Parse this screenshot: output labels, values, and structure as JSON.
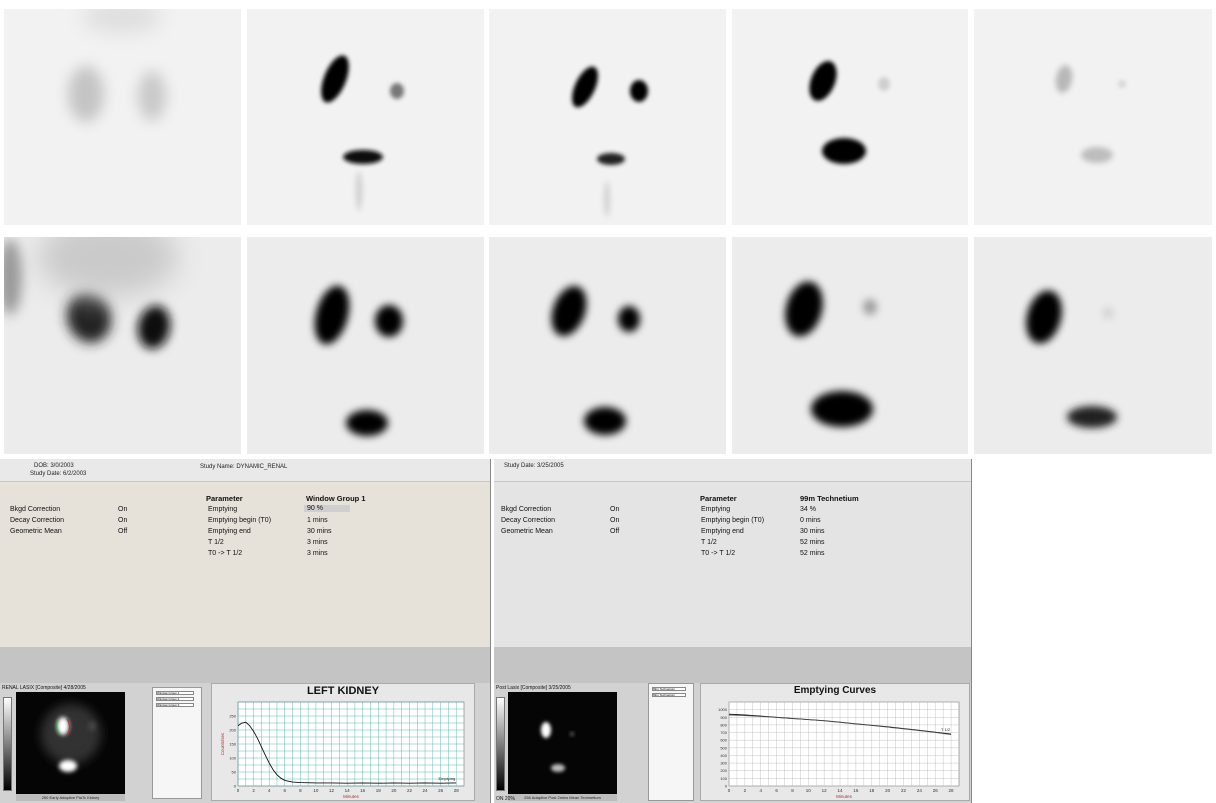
{
  "left_report": {
    "header": {
      "dob": "DOB: 3/0/2003",
      "study_date": "Study Date: 6/2/2003",
      "study_name": "Study Name: DYNAMIC_RENAL"
    },
    "corrections": [
      {
        "label": "Bkgd Correction",
        "value": "On"
      },
      {
        "label": "Decay Correction",
        "value": "On"
      },
      {
        "label": "Geometric Mean",
        "value": "Off"
      }
    ],
    "param_header": "Parameter",
    "group_header": "Window Group 1",
    "params": [
      {
        "label": "Emptying",
        "value": "90 %"
      },
      {
        "label": "Emptying begin (T0)",
        "value": "1 mins"
      },
      {
        "label": "Emptying end",
        "value": "30 mins"
      },
      {
        "label": "T 1/2",
        "value": "3 mins"
      },
      {
        "label": "T0 -> T 1/2",
        "value": "3 mins"
      }
    ],
    "thumb_title": "RENAL LASIX [Composite] 4/28/2005",
    "thumb_caption": "250 Early Adaptive PlaTc Kidney",
    "legend": [
      "Window Group 1",
      "Window Group 2",
      "Window Group 3"
    ],
    "chart": {
      "title": "LEFT KIDNEY",
      "xlabel": "Minutes",
      "ylabel": "Counts/sec",
      "xticks": [
        "0",
        "2",
        "4",
        "6",
        "8",
        "10",
        "12",
        "14",
        "16",
        "18",
        "20",
        "22",
        "24",
        "26",
        "28"
      ],
      "yticks": [
        "0",
        "50",
        "100",
        "150",
        "200",
        "250"
      ],
      "series_label": "Emptying"
    }
  },
  "right_report": {
    "header": {
      "study_date": "Study Date: 3/25/2005"
    },
    "corrections": [
      {
        "label": "Bkgd Correction",
        "value": "On"
      },
      {
        "label": "Decay Correction",
        "value": "On"
      },
      {
        "label": "Geometric Mean",
        "value": "Off"
      }
    ],
    "param_header": "Parameter",
    "group_header": "99m Technetium",
    "params": [
      {
        "label": "Emptying",
        "value": "34 %"
      },
      {
        "label": "Emptying begin (T0)",
        "value": "0 mins"
      },
      {
        "label": "Emptying end",
        "value": "30 mins"
      },
      {
        "label": "T 1/2",
        "value": "52 mins"
      },
      {
        "label": "T0 -> T 1/2",
        "value": "52 mins"
      }
    ],
    "thumb_title": "Post Lasix [Composite] 3/25/2005",
    "thumb_caption": "256 Adaptive Post 2mins Mean Technetium",
    "thumb_footer": "ON 20%",
    "legend": [
      "99m Technetium",
      "99m Technetium"
    ],
    "chart": {
      "title": "Emptying Curves",
      "xlabel": "Minutes",
      "xticks": [
        "0",
        "2",
        "4",
        "6",
        "8",
        "10",
        "12",
        "14",
        "16",
        "18",
        "20",
        "22",
        "24",
        "26",
        "28"
      ],
      "yticks": [
        "0",
        "100",
        "200",
        "300",
        "400",
        "500",
        "600",
        "700",
        "800",
        "900",
        "1000"
      ],
      "series_label": "T 1/2"
    }
  },
  "chart_data": [
    {
      "type": "line",
      "title": "LEFT KIDNEY",
      "xlabel": "Minutes",
      "ylabel": "Counts/sec",
      "xlim": [
        0,
        29
      ],
      "ylim": [
        0,
        300
      ],
      "grid": true,
      "x": [
        0,
        0.5,
        1,
        1.5,
        2,
        2.5,
        3,
        3.5,
        4,
        4.5,
        5,
        5.5,
        6,
        7,
        8,
        10,
        12,
        14,
        16,
        18,
        20,
        22,
        24,
        26,
        28
      ],
      "series": [
        {
          "values": [
            215,
            225,
            228,
            215,
            195,
            170,
            140,
            110,
            82,
            58,
            40,
            28,
            20,
            14,
            12,
            11,
            11,
            10,
            11,
            10,
            11,
            10,
            11,
            10,
            11
          ]
        }
      ],
      "annotations": [
        "Emptying"
      ]
    },
    {
      "type": "line",
      "title": "Emptying Curves",
      "xlabel": "Minutes",
      "xlim": [
        0,
        29
      ],
      "ylim": [
        0,
        1100
      ],
      "grid": true,
      "x": [
        0,
        2,
        4,
        6,
        8,
        10,
        12,
        14,
        16,
        18,
        20,
        22,
        24,
        26,
        28
      ],
      "series": [
        {
          "values": [
            940,
            930,
            915,
            900,
            885,
            870,
            855,
            835,
            815,
            795,
            775,
            752,
            730,
            705,
            680
          ]
        },
        {
          "values": [
            930,
            922,
            910,
            897,
            882,
            868,
            852,
            833,
            812,
            792,
            770,
            748,
            724,
            700,
            672
          ]
        }
      ],
      "annotations": [
        "T 1/2"
      ]
    }
  ]
}
